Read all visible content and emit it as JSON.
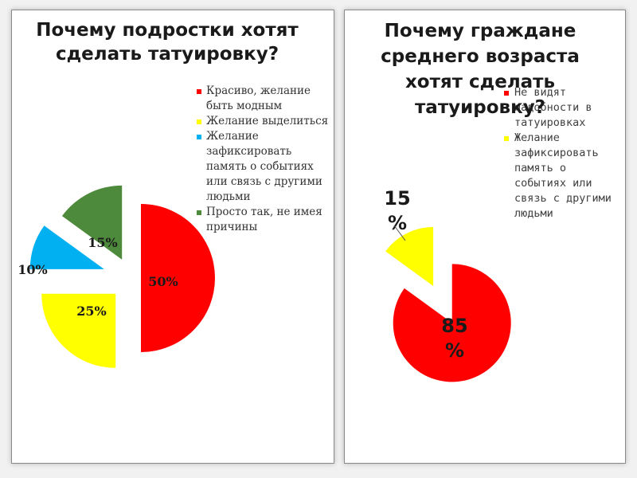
{
  "colors": {
    "red": "#ff0000",
    "yellow": "#ffff00",
    "blue": "#00b0f0",
    "green": "#4e8a3c"
  },
  "chart_data": [
    {
      "type": "pie",
      "title": "Почему подростки хотят сделать татуировку?",
      "categories": [
        "Красиво, желание быть модным",
        "Желание выделиться",
        "Желание зафиксировать память о событиях или связь с другими людьми",
        "Просто так, не имея причины"
      ],
      "values": [
        50,
        25,
        10,
        15
      ],
      "data_labels": [
        "50%",
        "25%",
        "10%",
        "15%"
      ],
      "slice_colors": [
        "#ff0000",
        "#ffff00",
        "#00b0f0",
        "#4e8a3c"
      ],
      "legend_position": "right",
      "exploded": true
    },
    {
      "type": "pie",
      "title": "Почему граждане среднего возраста хотят сделать татуировку?",
      "categories": [
        "Не видят надобности в татуировках",
        "Желание зафиксировать память о событиях или связь с другими людьми"
      ],
      "values": [
        85,
        15
      ],
      "data_labels": [
        "85 %",
        "15 %"
      ],
      "slice_colors": [
        "#ff0000",
        "#ffff00"
      ],
      "legend_position": "right",
      "exploded": true
    }
  ]
}
